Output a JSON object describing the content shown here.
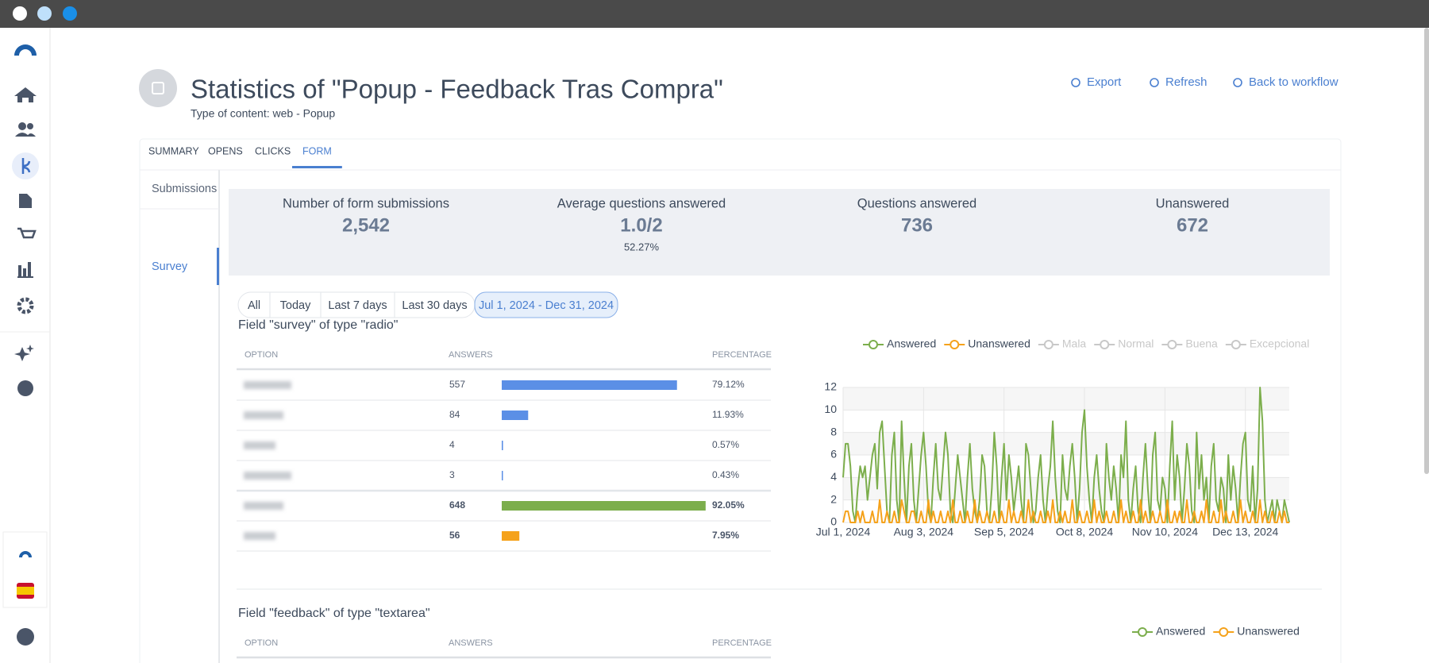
{
  "header": {
    "title": "Statistics of \"Popup - Feedback Tras Compra\"",
    "subtitle": "Type of content: web - Popup",
    "actions": [
      "Export",
      "Refresh",
      "Back to workflow"
    ]
  },
  "tabs": [
    {
      "label": "SUMMARY"
    },
    {
      "label": "OPENS"
    },
    {
      "label": "CLICKS"
    },
    {
      "label": "FORM",
      "active": true
    }
  ],
  "side_menu": [
    {
      "label": "Submissions"
    },
    {
      "label": "Survey",
      "active": true
    }
  ],
  "stats": [
    {
      "label": "Number of form submissions",
      "value": "2,542"
    },
    {
      "label": "Average questions answered",
      "value": "1.0/2",
      "note": "52.27%"
    },
    {
      "label": "Questions answered",
      "value": "736"
    },
    {
      "label": "Unanswered",
      "value": "672"
    }
  ],
  "date_filters": [
    {
      "label": "All"
    },
    {
      "label": "Today"
    },
    {
      "label": "Last 7 days"
    },
    {
      "label": "Last 30 days"
    },
    {
      "label": "Jul 1, 2024 - Dec 31, 2024",
      "active": true
    }
  ],
  "fields": [
    {
      "title": "Field \"survey\" of type \"radio\"",
      "columns": [
        "OPTION",
        "ANSWERS",
        "PERCENTAGE"
      ],
      "rows": [
        {
          "answers": 557,
          "percentage": {
            "value": 79.12,
            "label": "79.12%"
          },
          "color": "#5b8fe6"
        },
        {
          "answers": 84,
          "percentage": {
            "value": 11.93,
            "label": "11.93%"
          },
          "color": "#5b8fe6"
        },
        {
          "answers": 4,
          "percentage": {
            "value": 0.57,
            "label": "0.57%"
          },
          "color": "#5b8fe6"
        },
        {
          "answers": 3,
          "percentage": {
            "value": 0.43,
            "label": "0.43%"
          },
          "color": "#5b8fe6"
        },
        {
          "answers": 648,
          "percentage": {
            "value": 92.05,
            "label": "92.05%"
          },
          "color": "#7cae4c",
          "bold": true
        },
        {
          "answers": 56,
          "percentage": {
            "value": 7.95,
            "label": "7.95%"
          },
          "color": "#f5a21b",
          "bold": true
        }
      ]
    },
    {
      "title": "Field \"feedback\" of type \"textarea\"",
      "columns": [
        "OPTION",
        "ANSWERS",
        "PERCENTAGE"
      ]
    }
  ],
  "chart_data": [
    {
      "type": "line",
      "xlim": [
        0,
        183
      ],
      "ylim": [
        0,
        12
      ],
      "yticks": [
        0,
        2,
        4,
        6,
        8,
        10,
        12
      ],
      "grid": true,
      "xticks": [
        {
          "value": 0,
          "label": "Jul 1, 2024"
        },
        {
          "value": 33,
          "label": "Aug 3, 2024"
        },
        {
          "value": 66,
          "label": "Sep 5, 2024"
        },
        {
          "value": 99,
          "label": "Oct 8, 2024"
        },
        {
          "value": 132,
          "label": "Nov 10, 2024"
        },
        {
          "value": 165,
          "label": "Dec 13, 2024"
        }
      ],
      "series": [
        {
          "name": "Answered",
          "color": "#7cae4c",
          "values": [
            4,
            7,
            7,
            5,
            1,
            0,
            3,
            5,
            4,
            5,
            2,
            4,
            6,
            7,
            3,
            8,
            9,
            5,
            1,
            0,
            6,
            8,
            2,
            0,
            9,
            4,
            0,
            5,
            7,
            2,
            0,
            3,
            6,
            8,
            5,
            1,
            0,
            4,
            7,
            3,
            2,
            5,
            8,
            6,
            1,
            0,
            3,
            6,
            4,
            2,
            0,
            4,
            7,
            3,
            1,
            0,
            2,
            6,
            5,
            1,
            0,
            3,
            8,
            5,
            0,
            4,
            7,
            2,
            6,
            4,
            1,
            3,
            5,
            2,
            0,
            7,
            6,
            3,
            0,
            1,
            4,
            6,
            2,
            0,
            3,
            5,
            9,
            4,
            1,
            0,
            6,
            3,
            2,
            5,
            7,
            4,
            0,
            3,
            8,
            10,
            5,
            2,
            0,
            4,
            6,
            3,
            1,
            0,
            7,
            4,
            2,
            5,
            3,
            0,
            6,
            4,
            9,
            2,
            0,
            3,
            5,
            1,
            0,
            4,
            7,
            3,
            0,
            6,
            8,
            2,
            1,
            4,
            3,
            0,
            5,
            9,
            2,
            6,
            4,
            0,
            3,
            7,
            5,
            1,
            0,
            8,
            3,
            6,
            2,
            4,
            0,
            5,
            7,
            2,
            1,
            4,
            3,
            0,
            6,
            2,
            5,
            3,
            0,
            4,
            7,
            8,
            2,
            1,
            5,
            0,
            3,
            12,
            9,
            2,
            0,
            1,
            2,
            0,
            2,
            1,
            0,
            2,
            1,
            0
          ]
        },
        {
          "name": "Unanswered",
          "color": "#f5a21b",
          "values": [
            0,
            1,
            1,
            0,
            0,
            0,
            1,
            0,
            1,
            0,
            0,
            0,
            1,
            0,
            0,
            2,
            0,
            0,
            1,
            0,
            0,
            1,
            0,
            0,
            2,
            1,
            0,
            0,
            1,
            1,
            0,
            0,
            1,
            0,
            0,
            2,
            0,
            1,
            0,
            0,
            1,
            0,
            0,
            1,
            0,
            2,
            0,
            0,
            1,
            0,
            0,
            1,
            0,
            0,
            2,
            0,
            1,
            0,
            0,
            1,
            0,
            0,
            1,
            0,
            0,
            1,
            0,
            0,
            2,
            0,
            1,
            0,
            0,
            1,
            0,
            0,
            2,
            0,
            1,
            0,
            0,
            1,
            0,
            0,
            1,
            0,
            2,
            0,
            0,
            1,
            0,
            1,
            0,
            0,
            2,
            0,
            0,
            1,
            0,
            0,
            1,
            0,
            0,
            2,
            0,
            1,
            0,
            0,
            1,
            0,
            0,
            1,
            0,
            0,
            2,
            0,
            1,
            0,
            0,
            1,
            0,
            0,
            2,
            0,
            1,
            0,
            0,
            1,
            0,
            0,
            1,
            0,
            0,
            2,
            0,
            0,
            1,
            0,
            1,
            0,
            0,
            2,
            0,
            0,
            1,
            0,
            0,
            1,
            0,
            2,
            0,
            0,
            1,
            0,
            0,
            2,
            0,
            1,
            0,
            0,
            1,
            0,
            0,
            2,
            0,
            1,
            0,
            0,
            1,
            0,
            0,
            2,
            0,
            1,
            0,
            0,
            1,
            0,
            0,
            1,
            0,
            1,
            0,
            0
          ]
        }
      ],
      "inactive_series": [
        {
          "name": "Mala",
          "color": "#c8c8c8"
        },
        {
          "name": "Normal",
          "color": "#c8c8c8"
        },
        {
          "name": "Buena",
          "color": "#c8c8c8"
        },
        {
          "name": "Excepcional",
          "color": "#c8c8c8"
        }
      ]
    },
    {
      "type": "line",
      "series": [
        {
          "name": "Answered",
          "color": "#7cae4c"
        },
        {
          "name": "Unanswered",
          "color": "#f5a21b"
        }
      ]
    }
  ]
}
